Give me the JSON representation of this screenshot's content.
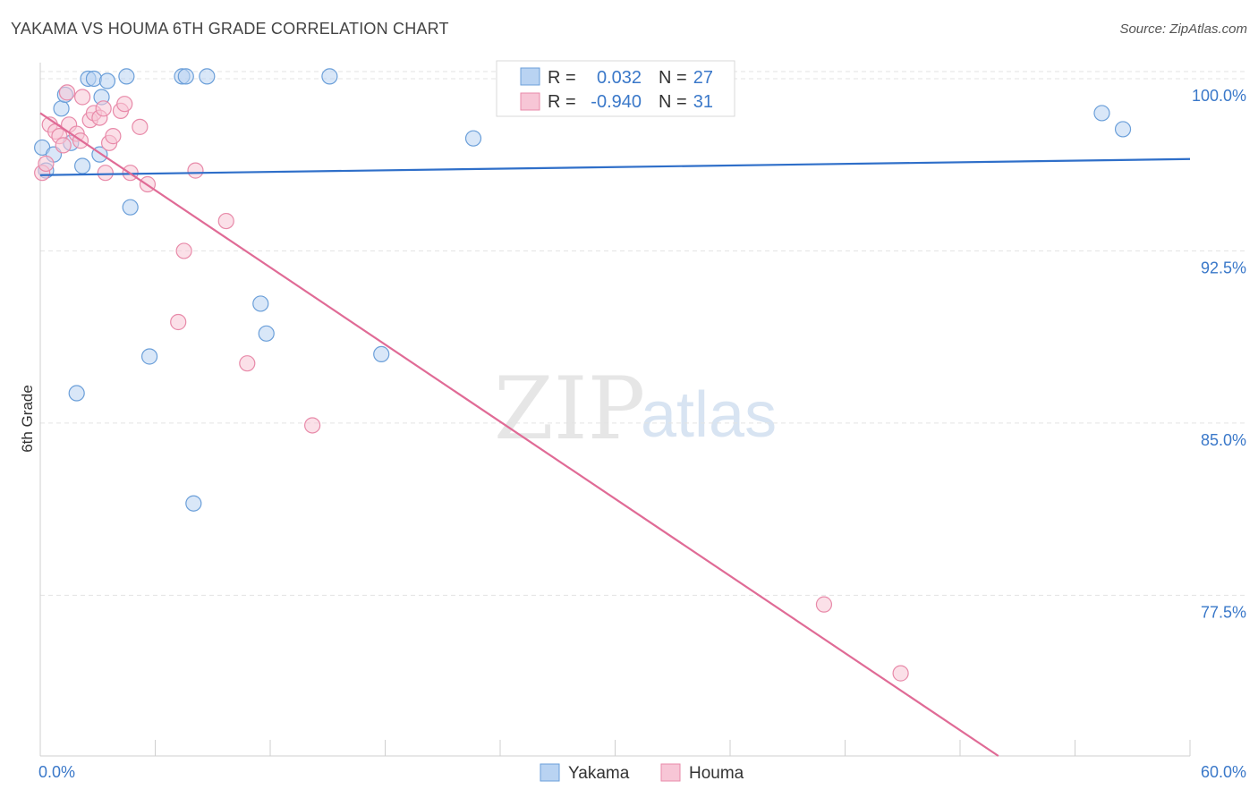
{
  "header": {
    "title": "YAKAMA VS HOUMA 6TH GRADE CORRELATION CHART",
    "source": "Source: ZipAtlas.com"
  },
  "watermark": {
    "zip": "ZIP",
    "atlas": "atlas"
  },
  "colors": {
    "yakama_fill": "#b9d3f2",
    "yakama_stroke": "#6b9fd9",
    "yakama_line": "#2f6fc9",
    "houma_fill": "#f7c6d6",
    "houma_stroke": "#e88aa9",
    "houma_line": "#e06b96",
    "grid": "#e3e3e3",
    "axis_label": "#3a78c9"
  },
  "legend_box": {
    "rows": [
      {
        "r_label": "R =",
        "r_value": "0.032",
        "n_label": "N =",
        "n_value": "27"
      },
      {
        "r_label": "R =",
        "r_value": "-0.940",
        "n_label": "N =",
        "n_value": "31"
      }
    ]
  },
  "bottom_legend": {
    "items": [
      "Yakama",
      "Houma"
    ]
  },
  "chart_data": {
    "type": "scatter",
    "title": "YAKAMA VS HOUMA 6TH GRADE CORRELATION CHART",
    "xlabel": "",
    "ylabel": "6th Grade",
    "xlim": [
      0,
      60
    ],
    "ylim": [
      70.5,
      100.7
    ],
    "x_tick_labels": [
      "0.0%",
      "60.0%"
    ],
    "y_ticks": [
      77.5,
      85.0,
      92.5,
      100.0
    ],
    "y_tick_labels": [
      "77.5%",
      "85.0%",
      "92.5%",
      "100.0%"
    ],
    "x_minor_ticks": [
      0,
      6,
      12,
      18,
      24,
      30,
      36,
      42,
      48,
      54,
      60
    ],
    "grid": true,
    "series": [
      {
        "name": "Yakama",
        "R": 0.032,
        "N": 27,
        "trend": {
          "x": [
            0,
            60
          ],
          "y": [
            95.8,
            96.5
          ]
        },
        "points": [
          {
            "x": 0.1,
            "y": 97.0
          },
          {
            "x": 0.3,
            "y": 96.0
          },
          {
            "x": 0.7,
            "y": 96.7
          },
          {
            "x": 1.1,
            "y": 98.7
          },
          {
            "x": 1.3,
            "y": 99.3
          },
          {
            "x": 1.6,
            "y": 97.2
          },
          {
            "x": 2.2,
            "y": 96.2
          },
          {
            "x": 2.5,
            "y": 100.0
          },
          {
            "x": 2.8,
            "y": 100.0
          },
          {
            "x": 3.2,
            "y": 99.2
          },
          {
            "x": 3.5,
            "y": 99.9
          },
          {
            "x": 4.5,
            "y": 100.1
          },
          {
            "x": 7.4,
            "y": 100.1
          },
          {
            "x": 7.6,
            "y": 100.1
          },
          {
            "x": 8.7,
            "y": 100.1
          },
          {
            "x": 15.1,
            "y": 100.1
          },
          {
            "x": 3.1,
            "y": 96.7
          },
          {
            "x": 4.7,
            "y": 94.4
          },
          {
            "x": 11.5,
            "y": 90.2
          },
          {
            "x": 11.8,
            "y": 88.9
          },
          {
            "x": 5.7,
            "y": 87.9
          },
          {
            "x": 17.8,
            "y": 88.0
          },
          {
            "x": 1.9,
            "y": 86.3
          },
          {
            "x": 8.0,
            "y": 81.5
          },
          {
            "x": 22.6,
            "y": 97.4
          },
          {
            "x": 55.4,
            "y": 98.5
          },
          {
            "x": 56.5,
            "y": 97.8
          }
        ]
      },
      {
        "name": "Houma",
        "R": -0.94,
        "N": 31,
        "trend": {
          "x": [
            0,
            50
          ],
          "y": [
            98.5,
            70.5
          ]
        },
        "points": [
          {
            "x": 0.1,
            "y": 95.9
          },
          {
            "x": 0.3,
            "y": 96.3
          },
          {
            "x": 0.5,
            "y": 98.0
          },
          {
            "x": 0.8,
            "y": 97.7
          },
          {
            "x": 1.0,
            "y": 97.5
          },
          {
            "x": 1.2,
            "y": 97.1
          },
          {
            "x": 1.4,
            "y": 99.4
          },
          {
            "x": 1.5,
            "y": 98.0
          },
          {
            "x": 1.9,
            "y": 97.6
          },
          {
            "x": 2.1,
            "y": 97.3
          },
          {
            "x": 2.2,
            "y": 99.2
          },
          {
            "x": 2.6,
            "y": 98.2
          },
          {
            "x": 2.8,
            "y": 98.5
          },
          {
            "x": 3.1,
            "y": 98.3
          },
          {
            "x": 3.3,
            "y": 98.7
          },
          {
            "x": 3.4,
            "y": 95.9
          },
          {
            "x": 3.6,
            "y": 97.2
          },
          {
            "x": 3.8,
            "y": 97.5
          },
          {
            "x": 4.2,
            "y": 98.6
          },
          {
            "x": 4.4,
            "y": 98.9
          },
          {
            "x": 4.7,
            "y": 95.9
          },
          {
            "x": 5.2,
            "y": 97.9
          },
          {
            "x": 5.6,
            "y": 95.4
          },
          {
            "x": 8.1,
            "y": 96.0
          },
          {
            "x": 9.7,
            "y": 93.8
          },
          {
            "x": 7.5,
            "y": 92.5
          },
          {
            "x": 7.2,
            "y": 89.4
          },
          {
            "x": 10.8,
            "y": 87.6
          },
          {
            "x": 14.2,
            "y": 84.9
          },
          {
            "x": 40.9,
            "y": 77.1
          },
          {
            "x": 44.9,
            "y": 74.1
          }
        ]
      }
    ]
  }
}
